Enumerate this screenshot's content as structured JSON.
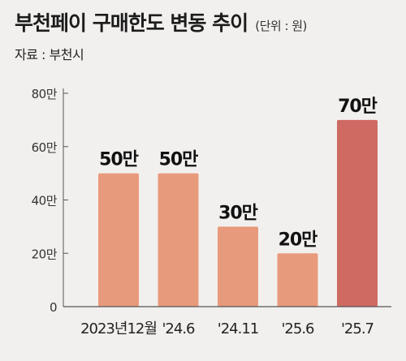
{
  "header": {
    "title": "부천페이 구매한도 변동 추이",
    "unit": "(단위 : 원)",
    "source": "자료 : 부천시"
  },
  "chart_data": {
    "type": "bar",
    "categories": [
      "2023년12월",
      "'24.6",
      "'24.11",
      "'25.6",
      "'25.7"
    ],
    "values": [
      500000,
      500000,
      300000,
      200000,
      700000
    ],
    "data_labels": [
      "50만",
      "50만",
      "30만",
      "20만",
      "70만"
    ],
    "ylim": [
      0,
      800000
    ],
    "yticks": [
      0,
      200000,
      400000,
      600000,
      800000
    ],
    "ytick_labels": [
      "0",
      "20만",
      "40만",
      "60만",
      "80만"
    ],
    "grid": false,
    "bar_color": "#e89a7c",
    "highlight_color": "#cf6a63",
    "highlight_index": 4
  }
}
